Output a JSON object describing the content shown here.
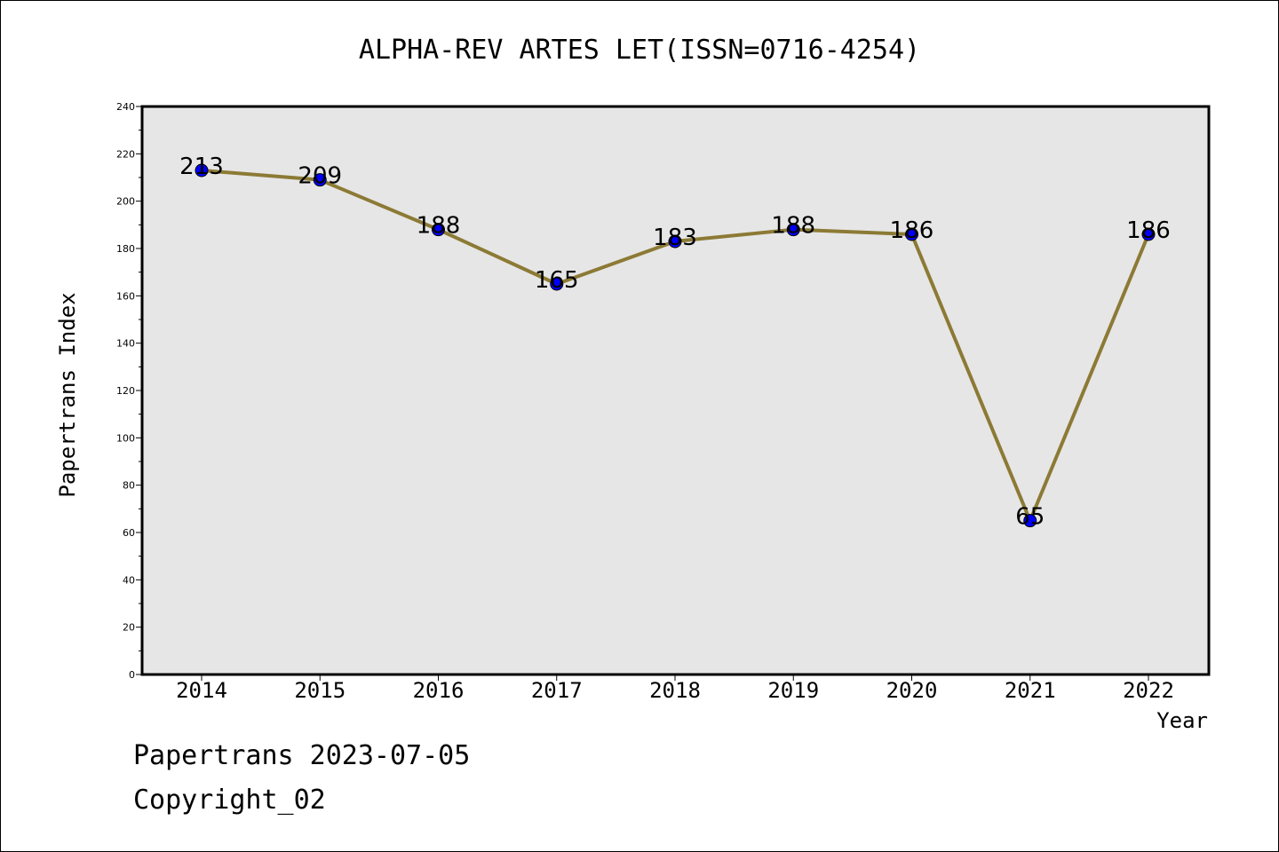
{
  "chart_data": {
    "type": "line",
    "title": "ALPHA-REV ARTES LET(ISSN=0716-4254)",
    "xlabel": "Year",
    "ylabel": "Papertrans Index",
    "categories": [
      "2014",
      "2015",
      "2016",
      "2017",
      "2018",
      "2019",
      "2020",
      "2021",
      "2022"
    ],
    "values": [
      213,
      209,
      188,
      165,
      183,
      188,
      186,
      65,
      186
    ],
    "data_labels": [
      "213",
      "209",
      "188",
      "165",
      "183",
      "188",
      "186",
      "65",
      "186"
    ],
    "ylim": [
      0,
      240
    ],
    "yticks": [
      "0",
      "20",
      "40",
      "60",
      "80",
      "100",
      "120",
      "140",
      "160",
      "180",
      "200",
      "220",
      "240"
    ],
    "grid": false,
    "colors": {
      "line": "#8c7a35",
      "marker": "#0000ff",
      "plot_background": "#e6e6e6"
    }
  },
  "footer": {
    "line1": "Papertrans 2023-07-05",
    "line2": "Copyright_02"
  }
}
